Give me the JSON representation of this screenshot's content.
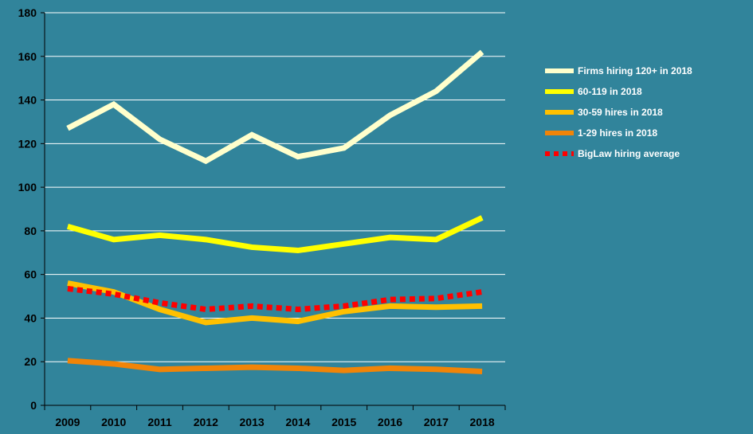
{
  "chart_data": {
    "type": "line",
    "title": "",
    "xlabel": "",
    "ylabel": "",
    "categories": [
      "2009",
      "2010",
      "2011",
      "2012",
      "2013",
      "2014",
      "2015",
      "2016",
      "2017",
      "2018"
    ],
    "ylim": [
      0,
      180
    ],
    "yticks": [
      0,
      20,
      40,
      60,
      80,
      100,
      120,
      140,
      160,
      180
    ],
    "grid": true,
    "legend_position": "right",
    "background_color": "#31849b",
    "series": [
      {
        "name": "Firms hiring 120+ in 2018",
        "color": "#ffffcc",
        "style": "solid",
        "values": [
          127,
          138,
          122,
          112,
          124,
          114,
          118,
          133,
          144,
          162
        ]
      },
      {
        "name": "60-119 in 2018",
        "color": "#ffff00",
        "style": "solid",
        "values": [
          82,
          76,
          78,
          76,
          72.5,
          71,
          74,
          77,
          76,
          86
        ]
      },
      {
        "name": "30-59 hires in 2018",
        "color": "#ffc000",
        "style": "solid",
        "values": [
          56,
          52,
          44,
          38,
          40,
          38.5,
          43,
          45.5,
          45,
          45.5
        ]
      },
      {
        "name": "1-29 hires in 2018",
        "color": "#f18407",
        "style": "solid",
        "values": [
          20.5,
          19,
          16.5,
          17,
          17.5,
          17,
          16,
          17,
          16.5,
          15.5
        ]
      },
      {
        "name": "BigLaw hiring average",
        "color": "#ff0000",
        "style": "dotted",
        "values": [
          53.5,
          51,
          47,
          44,
          45.5,
          44,
          45.5,
          48.5,
          49,
          52
        ]
      }
    ]
  }
}
